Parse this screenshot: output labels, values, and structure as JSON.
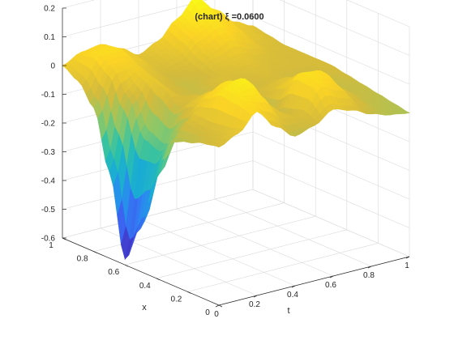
{
  "chart_data": {
    "type": "surface",
    "title": "(chart) ξ =0.0600",
    "xlabel": "t",
    "ylabel": "x",
    "zlabel": "",
    "xlim": [
      0,
      1
    ],
    "ylim": [
      0,
      1
    ],
    "zlim": [
      -0.6,
      0.2
    ],
    "xticks": [
      "0",
      "0.2",
      "0.4",
      "0.6",
      "0.8",
      "1"
    ],
    "yticks": [
      "0",
      "0.2",
      "0.4",
      "0.6",
      "0.8",
      "1"
    ],
    "zticks": [
      "-0.6",
      "-0.5",
      "-0.4",
      "-0.3",
      "-0.2",
      "-0.1",
      "0",
      "0.1",
      "0.2"
    ],
    "grid": true,
    "colormap": "parula",
    "colormap_stops": [
      "#3e26a8",
      "#4352ed",
      "#2e83f4",
      "#18a9da",
      "#2bc1aa",
      "#88c86b",
      "#d5bb3c",
      "#fbd425",
      "#f9fb15"
    ],
    "surface": {
      "t": [
        0,
        0.1,
        0.2,
        0.3,
        0.4,
        0.5,
        0.6,
        0.7,
        0.8,
        0.9,
        1
      ],
      "x": [
        0,
        0.1,
        0.2,
        0.3,
        0.4,
        0.5,
        0.6,
        0.7,
        0.8,
        0.9,
        1
      ],
      "z": [
        [
          -0.05,
          -0.02,
          0.04,
          -0.03,
          -0.08,
          -0.06,
          -0.02,
          -0.04,
          -0.07,
          -0.09,
          -0.1
        ],
        [
          -0.06,
          -0.04,
          0.06,
          0.05,
          -0.03,
          -0.05,
          0.05,
          0.02,
          -0.05,
          -0.08,
          -0.09
        ],
        [
          -0.08,
          -0.05,
          0.07,
          0.09,
          -0.01,
          -0.07,
          0.06,
          0.05,
          -0.03,
          -0.07,
          -0.08
        ],
        [
          -0.1,
          -0.04,
          0.03,
          0.06,
          -0.02,
          -0.1,
          0.0,
          0.02,
          -0.04,
          -0.07,
          -0.07
        ],
        [
          -0.25,
          -0.12,
          -0.02,
          0.0,
          -0.05,
          -0.08,
          -0.04,
          -0.02,
          -0.05,
          -0.07,
          -0.06
        ],
        [
          -0.45,
          -0.2,
          -0.06,
          -0.04,
          -0.06,
          -0.05,
          -0.06,
          -0.05,
          -0.06,
          -0.06,
          -0.05
        ],
        [
          -0.58,
          -0.18,
          -0.02,
          -0.06,
          -0.07,
          -0.04,
          -0.05,
          -0.04,
          -0.05,
          -0.05,
          -0.05
        ],
        [
          -0.3,
          -0.06,
          0.0,
          -0.05,
          -0.07,
          -0.06,
          -0.03,
          -0.02,
          -0.04,
          -0.05,
          -0.05
        ],
        [
          -0.1,
          0.02,
          0.02,
          -0.03,
          -0.06,
          -0.05,
          0.0,
          0.03,
          0.0,
          -0.04,
          -0.05
        ],
        [
          -0.03,
          0.05,
          0.05,
          0.0,
          -0.04,
          -0.02,
          0.04,
          0.07,
          0.03,
          -0.02,
          -0.04
        ],
        [
          0.0,
          0.03,
          0.04,
          0.01,
          -0.03,
          0.0,
          0.06,
          0.12,
          0.06,
          0.0,
          -0.03
        ]
      ]
    }
  }
}
